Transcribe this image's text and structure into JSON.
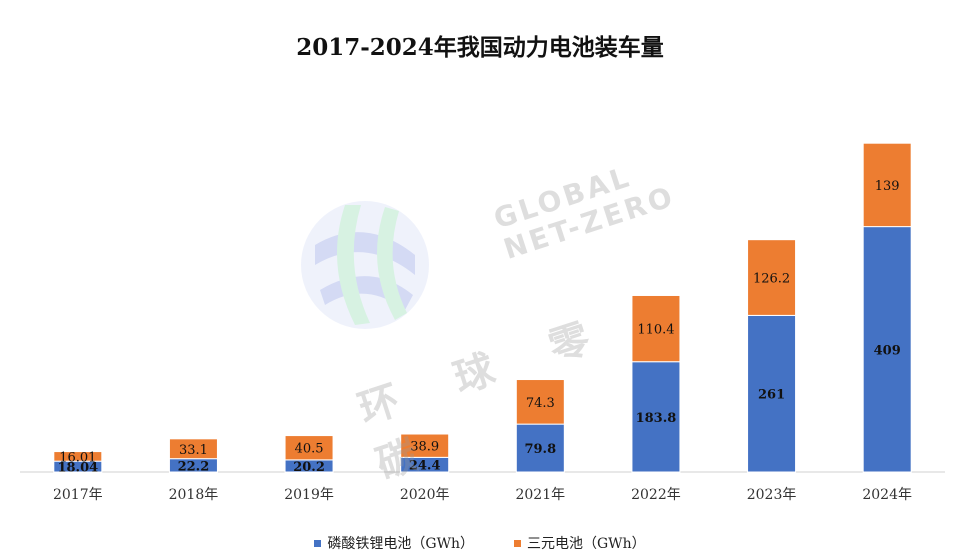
{
  "chart_data": {
    "type": "bar",
    "stacked": true,
    "title": "2017-2024年我国动力电池装车量",
    "categories": [
      "2017年",
      "2018年",
      "2019年",
      "2020年",
      "2021年",
      "2022年",
      "2023年",
      "2024年"
    ],
    "series": [
      {
        "name": "磷酸铁锂电池（GWh）",
        "color": "#4472C4",
        "values": [
          18.04,
          22.2,
          20.2,
          24.4,
          79.8,
          183.8,
          261,
          409
        ],
        "labels": [
          "18.04",
          "22.2",
          "20.2",
          "24.4",
          "79.8",
          "183.8",
          "261",
          "409"
        ]
      },
      {
        "name": "三元电池（GWh）",
        "color": "#ED7D31",
        "values": [
          16.01,
          33.1,
          40.5,
          38.9,
          74.3,
          110.4,
          126.2,
          139
        ],
        "labels": [
          "16.01",
          "33.1",
          "40.5",
          "38.9",
          "74.3",
          "110.4",
          "126.2",
          "139"
        ]
      }
    ],
    "ylim": [
      0,
      600
    ],
    "grid": false,
    "legend_position": "bottom"
  },
  "watermark": {
    "text_en": [
      "GLOBAL",
      "NET-ZERO"
    ],
    "text_cn": "环球零碳",
    "logo": "globe-logo-icon"
  }
}
